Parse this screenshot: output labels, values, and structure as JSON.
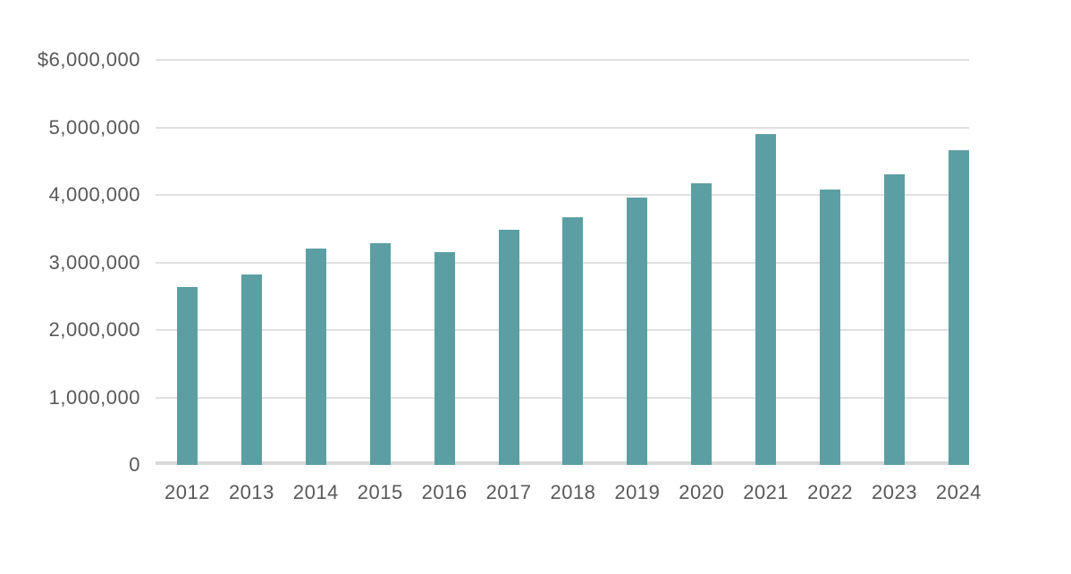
{
  "chart_data": {
    "type": "bar",
    "categories": [
      "2012",
      "2013",
      "2014",
      "2015",
      "2016",
      "2017",
      "2018",
      "2019",
      "2020",
      "2021",
      "2022",
      "2023",
      "2024"
    ],
    "values": [
      2630000,
      2820000,
      3210000,
      3280000,
      3150000,
      3480000,
      3670000,
      3960000,
      4170000,
      4900000,
      4080000,
      4300000,
      4660000
    ],
    "title": "",
    "xlabel": "",
    "ylabel": "",
    "ylim": [
      0,
      6000000
    ],
    "grid": true,
    "legend_position": "none",
    "y_ticks": [
      {
        "value": 6000000,
        "label": "$6,000,000"
      },
      {
        "value": 5000000,
        "label": "5,000,000"
      },
      {
        "value": 4000000,
        "label": "4,000,000"
      },
      {
        "value": 3000000,
        "label": "3,000,000"
      },
      {
        "value": 2000000,
        "label": "2,000,000"
      },
      {
        "value": 1000000,
        "label": "1,000,000"
      },
      {
        "value": 0,
        "label": "0"
      }
    ]
  },
  "colors": {
    "bar": "#5C9FA2",
    "gridline": "#e0e0e0",
    "axis_line": "#d9d9d9",
    "text": "#595959",
    "background": "#ffffff"
  }
}
